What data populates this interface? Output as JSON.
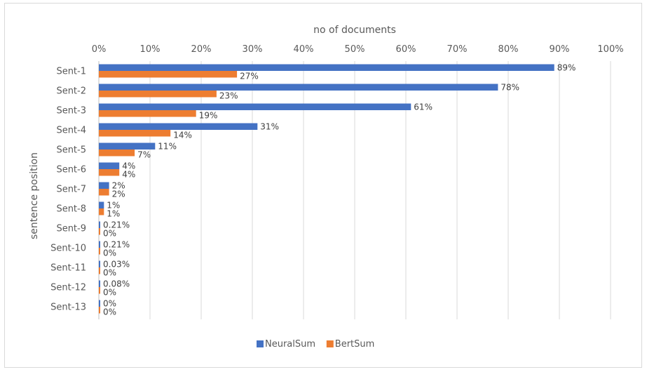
{
  "chart_data": {
    "type": "bar",
    "orientation": "horizontal",
    "xlabel": "no of documents",
    "ylabel": "sentence position",
    "xlim": [
      0,
      100
    ],
    "x_ticks": [
      "0%",
      "10%",
      "20%",
      "30%",
      "40%",
      "50%",
      "60%",
      "70%",
      "80%",
      "90%",
      "100%"
    ],
    "x_axis_position": "top",
    "grid": true,
    "legend_position": "bottom",
    "categories": [
      "Sent-1",
      "Sent-2",
      "Sent-3",
      "Sent-4",
      "Sent-5",
      "Sent-6",
      "Sent-7",
      "Sent-8",
      "Sent-9",
      "Sent-10",
      "Sent-11",
      "Sent-12",
      "Sent-13"
    ],
    "series": [
      {
        "name": "NeuralSum",
        "color": "#4472c4",
        "values": [
          89,
          78,
          61,
          31,
          11,
          4,
          2,
          1,
          0.21,
          0.21,
          0.03,
          0.08,
          0
        ],
        "labels": [
          "89%",
          "78%",
          "61%",
          "31%",
          "11%",
          "4%",
          "2%",
          "1%",
          "0.21%",
          "0.21%",
          "0.03%",
          "0.08%",
          "0%"
        ]
      },
      {
        "name": "BertSum",
        "color": "#ed7d31",
        "values": [
          27,
          23,
          19,
          14,
          7,
          4,
          2,
          1,
          0,
          0,
          0,
          0,
          0
        ],
        "labels": [
          "27%",
          "23%",
          "19%",
          "14%",
          "7%",
          "4%",
          "2%",
          "1%",
          "0%",
          "0%",
          "0%",
          "0%",
          "0%"
        ]
      }
    ]
  }
}
